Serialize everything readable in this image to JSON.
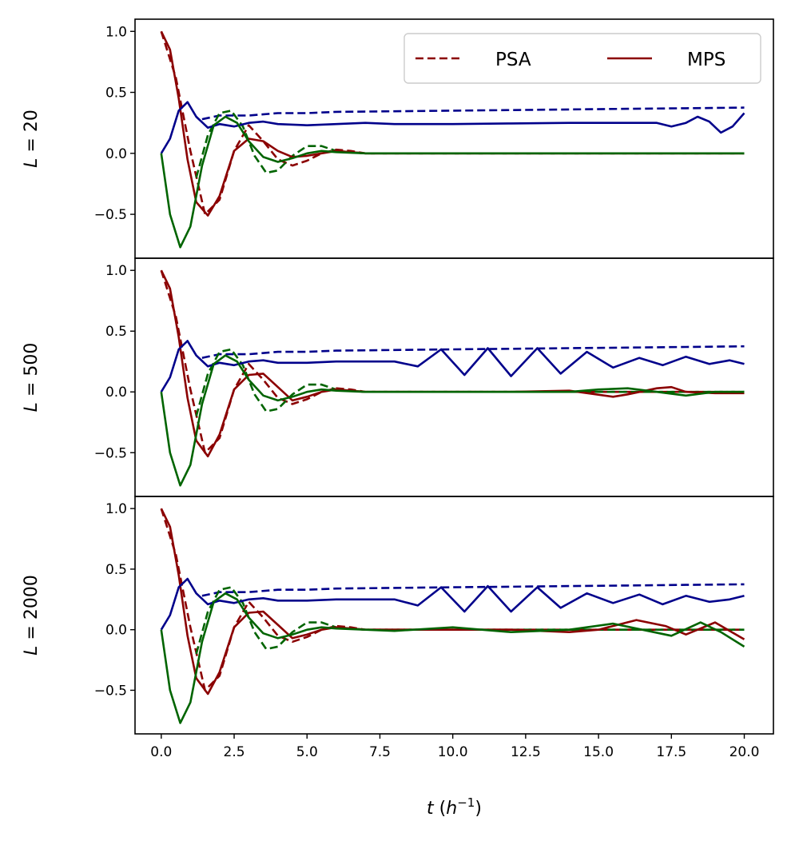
{
  "chart_data": [
    {
      "type": "line",
      "ylabel": "L = 20",
      "xlim": [
        -0.9,
        21.0
      ],
      "ylim": [
        -0.86,
        1.1
      ],
      "yticks": [
        -0.5,
        0.0,
        0.5,
        1.0
      ],
      "ytick_labels": [
        "−0.5",
        "0.0",
        "0.5",
        "1.0"
      ],
      "legend": {
        "placement": "top-right",
        "entries": [
          {
            "label": "PSA",
            "style": "dashed",
            "color": "#8b0000"
          },
          {
            "label": "MPS",
            "style": "solid",
            "color": "#8b0000"
          }
        ]
      },
      "series": [
        {
          "name": "PSA red",
          "color": "#8b0000",
          "style": "dashed",
          "x": [
            0.0,
            0.5,
            1.0,
            1.5,
            2.0,
            2.5,
            3.0,
            3.5,
            4.0,
            4.5,
            5.0,
            5.5,
            6.0,
            6.5,
            7.0,
            8.0,
            10.0,
            12.0,
            14.0,
            16.0,
            18.0,
            20.0
          ],
          "y": [
            1.0,
            0.62,
            0.02,
            -0.5,
            -0.38,
            0.02,
            0.23,
            0.1,
            -0.05,
            -0.1,
            -0.06,
            0.0,
            0.03,
            0.02,
            0.0,
            0.0,
            0.0,
            0.0,
            0.0,
            0.0,
            0.0,
            0.0
          ]
        },
        {
          "name": "PSA blue",
          "color": "#00008b",
          "style": "dashed",
          "x": [
            1.4,
            2.0,
            3.0,
            4.0,
            5.0,
            6.0,
            8.0,
            10.0,
            12.0,
            14.0,
            16.0,
            18.0,
            20.0
          ],
          "y": [
            0.28,
            0.31,
            0.31,
            0.33,
            0.33,
            0.34,
            0.345,
            0.35,
            0.355,
            0.36,
            0.365,
            0.37,
            0.375
          ]
        },
        {
          "name": "PSA green",
          "color": "#006400",
          "style": "dashed",
          "x": [
            1.2,
            1.6,
            2.0,
            2.4,
            2.8,
            3.2,
            3.6,
            4.0,
            4.5,
            5.0,
            5.5,
            6.0,
            7.0,
            8.0,
            10.0,
            12.0,
            14.0,
            16.0,
            18.0,
            20.0
          ],
          "y": [
            -0.2,
            0.15,
            0.33,
            0.35,
            0.22,
            -0.02,
            -0.16,
            -0.14,
            -0.02,
            0.06,
            0.06,
            0.02,
            0.0,
            0.0,
            0.0,
            0.0,
            0.0,
            0.0,
            0.0,
            0.0
          ]
        },
        {
          "name": "MPS red",
          "color": "#8b0000",
          "style": "solid",
          "x": [
            0.0,
            0.3,
            0.6,
            0.9,
            1.2,
            1.6,
            2.0,
            2.5,
            3.0,
            3.5,
            4.0,
            4.5,
            5.0,
            5.5,
            6.0,
            7.0,
            8.0,
            10.0,
            12.0,
            14.0,
            16.0,
            18.0,
            20.0
          ],
          "y": [
            1.0,
            0.85,
            0.45,
            -0.05,
            -0.4,
            -0.51,
            -0.35,
            0.02,
            0.12,
            0.1,
            0.02,
            -0.03,
            -0.02,
            0.0,
            0.02,
            0.0,
            0.0,
            0.0,
            0.0,
            0.0,
            0.0,
            0.0,
            0.0
          ]
        },
        {
          "name": "MPS blue",
          "color": "#00008b",
          "style": "solid",
          "x": [
            0.0,
            0.3,
            0.6,
            0.9,
            1.2,
            1.6,
            2.0,
            2.5,
            3.0,
            3.5,
            4.0,
            5.0,
            6.0,
            7.0,
            8.0,
            10.0,
            12.0,
            14.0,
            16.0,
            17.0,
            17.5,
            18.0,
            18.4,
            18.8,
            19.2,
            19.6,
            20.0
          ],
          "y": [
            0.0,
            0.12,
            0.35,
            0.42,
            0.3,
            0.21,
            0.24,
            0.22,
            0.25,
            0.26,
            0.24,
            0.23,
            0.24,
            0.25,
            0.24,
            0.24,
            0.245,
            0.25,
            0.25,
            0.25,
            0.22,
            0.25,
            0.3,
            0.26,
            0.17,
            0.22,
            0.33
          ]
        },
        {
          "name": "MPS green",
          "color": "#006400",
          "style": "solid",
          "x": [
            0.0,
            0.3,
            0.65,
            1.0,
            1.4,
            1.8,
            2.2,
            2.6,
            3.0,
            3.5,
            4.0,
            4.5,
            5.0,
            5.5,
            6.0,
            7.0,
            8.0,
            10.0,
            12.0,
            14.0,
            16.0,
            18.0,
            20.0
          ],
          "y": [
            0.0,
            -0.5,
            -0.77,
            -0.6,
            -0.1,
            0.23,
            0.3,
            0.25,
            0.1,
            -0.03,
            -0.07,
            -0.04,
            0.0,
            0.02,
            0.01,
            0.0,
            0.0,
            0.0,
            0.0,
            0.0,
            0.0,
            0.0,
            0.0
          ]
        }
      ]
    },
    {
      "type": "line",
      "ylabel": "L = 500",
      "xlim": [
        -0.9,
        21.0
      ],
      "ylim": [
        -0.86,
        1.1
      ],
      "yticks": [
        -0.5,
        0.0,
        0.5,
        1.0
      ],
      "ytick_labels": [
        "−0.5",
        "0.0",
        "0.5",
        "1.0"
      ],
      "series": [
        {
          "name": "PSA red",
          "color": "#8b0000",
          "style": "dashed",
          "x": [
            0.0,
            0.5,
            1.0,
            1.5,
            2.0,
            2.5,
            3.0,
            3.5,
            4.0,
            4.5,
            5.0,
            5.5,
            6.0,
            6.5,
            7.0,
            8.0,
            10.0,
            12.0,
            14.0,
            16.0,
            18.0,
            20.0
          ],
          "y": [
            1.0,
            0.62,
            0.02,
            -0.5,
            -0.38,
            0.02,
            0.23,
            0.1,
            -0.05,
            -0.1,
            -0.06,
            0.0,
            0.03,
            0.02,
            0.0,
            0.0,
            0.0,
            0.0,
            0.0,
            0.0,
            0.0,
            0.0
          ]
        },
        {
          "name": "PSA blue",
          "color": "#00008b",
          "style": "dashed",
          "x": [
            1.4,
            2.0,
            3.0,
            4.0,
            5.0,
            6.0,
            8.0,
            10.0,
            12.0,
            14.0,
            16.0,
            18.0,
            20.0
          ],
          "y": [
            0.28,
            0.31,
            0.31,
            0.33,
            0.33,
            0.34,
            0.345,
            0.35,
            0.355,
            0.36,
            0.365,
            0.37,
            0.375
          ]
        },
        {
          "name": "PSA green",
          "color": "#006400",
          "style": "dashed",
          "x": [
            1.2,
            1.6,
            2.0,
            2.4,
            2.8,
            3.2,
            3.6,
            4.0,
            4.5,
            5.0,
            5.5,
            6.0,
            7.0,
            8.0,
            10.0,
            12.0,
            14.0,
            16.0,
            18.0,
            20.0
          ],
          "y": [
            -0.2,
            0.15,
            0.33,
            0.35,
            0.22,
            -0.02,
            -0.16,
            -0.14,
            -0.02,
            0.06,
            0.06,
            0.02,
            0.0,
            0.0,
            0.0,
            0.0,
            0.0,
            0.0,
            0.0,
            0.0
          ]
        },
        {
          "name": "MPS red",
          "color": "#8b0000",
          "style": "solid",
          "x": [
            0.0,
            0.3,
            0.6,
            0.9,
            1.2,
            1.6,
            2.0,
            2.5,
            3.0,
            3.5,
            4.0,
            4.5,
            5.0,
            5.5,
            6.0,
            7.0,
            8.0,
            10.0,
            12.0,
            14.0,
            15.5,
            16.0,
            17.0,
            17.5,
            18.0,
            19.0,
            20.0
          ],
          "y": [
            1.0,
            0.85,
            0.45,
            -0.05,
            -0.4,
            -0.53,
            -0.35,
            0.02,
            0.14,
            0.15,
            0.04,
            -0.07,
            -0.04,
            0.0,
            0.02,
            0.0,
            0.0,
            0.0,
            0.0,
            0.01,
            -0.04,
            -0.02,
            0.03,
            0.04,
            0.0,
            -0.01,
            -0.01
          ]
        },
        {
          "name": "MPS blue",
          "color": "#00008b",
          "style": "solid",
          "x": [
            0.0,
            0.3,
            0.6,
            0.9,
            1.2,
            1.6,
            2.0,
            2.5,
            3.0,
            3.5,
            4.0,
            5.0,
            6.0,
            7.0,
            8.0,
            8.8,
            9.6,
            10.4,
            11.2,
            12.0,
            12.9,
            13.7,
            14.6,
            15.5,
            16.4,
            17.2,
            18.0,
            18.8,
            19.5,
            20.0
          ],
          "y": [
            0.0,
            0.12,
            0.35,
            0.42,
            0.3,
            0.21,
            0.24,
            0.22,
            0.25,
            0.26,
            0.24,
            0.24,
            0.25,
            0.25,
            0.25,
            0.21,
            0.35,
            0.14,
            0.36,
            0.13,
            0.36,
            0.15,
            0.33,
            0.2,
            0.28,
            0.22,
            0.29,
            0.23,
            0.26,
            0.23
          ]
        },
        {
          "name": "MPS green",
          "color": "#006400",
          "style": "solid",
          "x": [
            0.0,
            0.3,
            0.65,
            1.0,
            1.4,
            1.8,
            2.2,
            2.6,
            3.0,
            3.5,
            4.0,
            4.5,
            5.0,
            5.5,
            6.0,
            7.0,
            8.0,
            10.0,
            12.0,
            14.0,
            15.0,
            16.0,
            17.0,
            18.0,
            19.0,
            20.0
          ],
          "y": [
            0.0,
            -0.5,
            -0.77,
            -0.6,
            -0.1,
            0.23,
            0.3,
            0.25,
            0.1,
            -0.03,
            -0.07,
            -0.04,
            0.0,
            0.02,
            0.01,
            0.0,
            0.0,
            0.0,
            0.0,
            0.0,
            0.02,
            0.03,
            0.0,
            -0.03,
            0.0,
            0.0
          ]
        }
      ]
    },
    {
      "type": "line",
      "ylabel": "L = 2000",
      "xlabel": "t (h⁻¹)",
      "xlim": [
        -0.9,
        21.0
      ],
      "ylim": [
        -0.86,
        1.1
      ],
      "xticks": [
        0.0,
        2.5,
        5.0,
        7.5,
        10.0,
        12.5,
        15.0,
        17.5,
        20.0
      ],
      "xtick_labels": [
        "0.0",
        "2.5",
        "5.0",
        "7.5",
        "10.0",
        "12.5",
        "15.0",
        "17.5",
        "20.0"
      ],
      "yticks": [
        -0.5,
        0.0,
        0.5,
        1.0
      ],
      "ytick_labels": [
        "−0.5",
        "0.0",
        "0.5",
        "1.0"
      ],
      "series": [
        {
          "name": "PSA red",
          "color": "#8b0000",
          "style": "dashed",
          "x": [
            0.0,
            0.5,
            1.0,
            1.5,
            2.0,
            2.5,
            3.0,
            3.5,
            4.0,
            4.5,
            5.0,
            5.5,
            6.0,
            6.5,
            7.0,
            8.0,
            10.0,
            12.0,
            14.0,
            16.0,
            18.0,
            20.0
          ],
          "y": [
            1.0,
            0.62,
            0.02,
            -0.5,
            -0.38,
            0.02,
            0.23,
            0.1,
            -0.05,
            -0.1,
            -0.06,
            0.0,
            0.03,
            0.02,
            0.0,
            0.0,
            0.0,
            0.0,
            0.0,
            0.0,
            0.0,
            0.0
          ]
        },
        {
          "name": "PSA blue",
          "color": "#00008b",
          "style": "dashed",
          "x": [
            1.4,
            2.0,
            3.0,
            4.0,
            5.0,
            6.0,
            8.0,
            10.0,
            12.0,
            14.0,
            16.0,
            18.0,
            20.0
          ],
          "y": [
            0.28,
            0.31,
            0.31,
            0.33,
            0.33,
            0.34,
            0.345,
            0.35,
            0.355,
            0.36,
            0.365,
            0.37,
            0.375
          ]
        },
        {
          "name": "PSA green",
          "color": "#006400",
          "style": "dashed",
          "x": [
            1.2,
            1.6,
            2.0,
            2.4,
            2.8,
            3.2,
            3.6,
            4.0,
            4.5,
            5.0,
            5.5,
            6.0,
            7.0,
            8.0,
            10.0,
            12.0,
            14.0,
            16.0,
            18.0,
            20.0
          ],
          "y": [
            -0.2,
            0.15,
            0.33,
            0.35,
            0.22,
            -0.02,
            -0.16,
            -0.14,
            -0.02,
            0.06,
            0.06,
            0.02,
            0.0,
            0.0,
            0.0,
            0.0,
            0.0,
            0.0,
            0.0,
            0.0
          ]
        },
        {
          "name": "MPS red",
          "color": "#8b0000",
          "style": "solid",
          "x": [
            0.0,
            0.3,
            0.6,
            0.9,
            1.2,
            1.6,
            2.0,
            2.5,
            3.0,
            3.5,
            4.0,
            4.5,
            5.0,
            5.5,
            6.0,
            7.0,
            8.0,
            10.0,
            12.0,
            14.0,
            15.0,
            16.3,
            17.3,
            18.0,
            19.0,
            20.0
          ],
          "y": [
            1.0,
            0.85,
            0.45,
            -0.05,
            -0.4,
            -0.53,
            -0.35,
            0.02,
            0.14,
            0.15,
            0.04,
            -0.07,
            -0.04,
            0.0,
            0.02,
            0.0,
            0.0,
            0.0,
            0.0,
            -0.02,
            0.0,
            0.08,
            0.03,
            -0.04,
            0.06,
            -0.08
          ]
        },
        {
          "name": "MPS blue",
          "color": "#00008b",
          "style": "solid",
          "x": [
            0.0,
            0.3,
            0.6,
            0.9,
            1.2,
            1.6,
            2.0,
            2.5,
            3.0,
            3.5,
            4.0,
            5.0,
            6.0,
            7.0,
            8.0,
            8.8,
            9.6,
            10.4,
            11.2,
            12.0,
            12.9,
            13.7,
            14.6,
            15.5,
            16.4,
            17.2,
            18.0,
            18.8,
            19.5,
            20.0
          ],
          "y": [
            0.0,
            0.12,
            0.35,
            0.42,
            0.3,
            0.21,
            0.24,
            0.22,
            0.25,
            0.26,
            0.24,
            0.24,
            0.25,
            0.25,
            0.25,
            0.2,
            0.35,
            0.15,
            0.36,
            0.15,
            0.35,
            0.18,
            0.3,
            0.22,
            0.29,
            0.21,
            0.28,
            0.23,
            0.25,
            0.28
          ]
        },
        {
          "name": "MPS green",
          "color": "#006400",
          "style": "solid",
          "x": [
            0.0,
            0.3,
            0.65,
            1.0,
            1.4,
            1.8,
            2.2,
            2.6,
            3.0,
            3.5,
            4.0,
            4.5,
            5.0,
            5.5,
            6.0,
            7.0,
            8.0,
            10.0,
            12.0,
            14.0,
            15.5,
            16.5,
            17.5,
            18.5,
            19.2,
            20.0
          ],
          "y": [
            0.0,
            -0.5,
            -0.77,
            -0.6,
            -0.1,
            0.23,
            0.3,
            0.25,
            0.1,
            -0.03,
            -0.07,
            -0.04,
            0.0,
            0.02,
            0.01,
            0.0,
            -0.01,
            0.02,
            -0.02,
            0.0,
            0.05,
            0.0,
            -0.05,
            0.06,
            -0.02,
            -0.14
          ]
        }
      ]
    }
  ]
}
